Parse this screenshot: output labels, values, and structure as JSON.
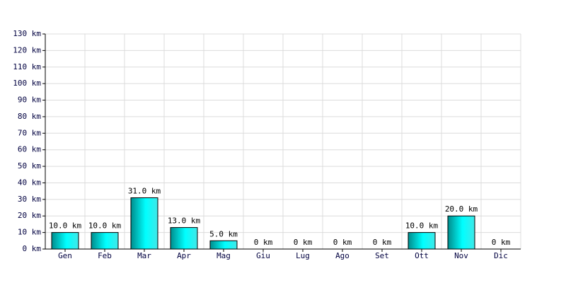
{
  "chart_data": {
    "type": "bar",
    "categories": [
      "Gen",
      "Feb",
      "Mar",
      "Apr",
      "Mag",
      "Giu",
      "Lug",
      "Ago",
      "Set",
      "Ott",
      "Nov",
      "Dic"
    ],
    "values": [
      10,
      10,
      31,
      13,
      5,
      0,
      0,
      0,
      0,
      10,
      20,
      0
    ],
    "value_labels": [
      "10.0 km",
      "10.0 km",
      "31.0 km",
      "13.0 km",
      "5.0 km",
      "0 km",
      "0 km",
      "0 km",
      "0 km",
      "10.0 km",
      "20.0 km",
      "0 km"
    ],
    "color": "#00e0e0",
    "ylim": [
      0,
      130
    ],
    "yticks": [
      {
        "value": 0,
        "label": "0 km"
      },
      {
        "value": 10,
        "label": "10 km"
      },
      {
        "value": 20,
        "label": "20 km"
      },
      {
        "value": 30,
        "label": "30 km"
      },
      {
        "value": 40,
        "label": "40 km"
      },
      {
        "value": 50,
        "label": "50 km"
      },
      {
        "value": 60,
        "label": "60 km"
      },
      {
        "value": 70,
        "label": "70 km"
      },
      {
        "value": 80,
        "label": "80 km"
      },
      {
        "value": 90,
        "label": "90 km"
      },
      {
        "value": 100,
        "label": "100 km"
      },
      {
        "value": 110,
        "label": "110 km"
      },
      {
        "value": 120,
        "label": "120 km"
      },
      {
        "value": 130,
        "label": "130 km"
      }
    ],
    "grid": true
  }
}
